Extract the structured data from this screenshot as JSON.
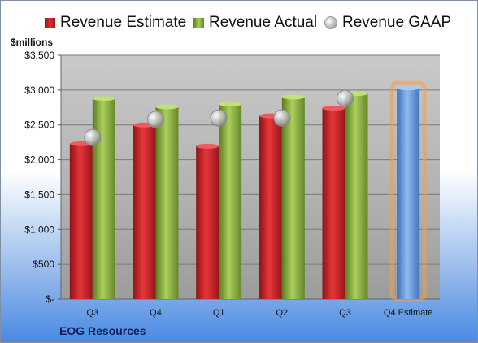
{
  "legend": {
    "estimate": "Revenue Estimate",
    "actual": "Revenue Actual",
    "gaap": "Revenue GAAP"
  },
  "unit_label": "$millions",
  "company": "EOG Resources",
  "colors": {
    "estimate": "#d32a2e",
    "actual": "#8fb24a",
    "gaap": "#b8b8b8",
    "forecast": "#6d9fdc",
    "forecast_glow": "#f5a041"
  },
  "chart_data": {
    "type": "bar",
    "categories": [
      "Q3",
      "Q4",
      "Q1",
      "Q2",
      "Q3",
      "Q4 Estimate"
    ],
    "series": [
      {
        "name": "Revenue Estimate",
        "values": [
          2230,
          2500,
          2195,
          2630,
          2740,
          3030
        ]
      },
      {
        "name": "Revenue Actual",
        "values": [
          2880,
          2760,
          2800,
          2900,
          2950,
          null
        ]
      },
      {
        "name": "Revenue GAAP",
        "values": [
          2320,
          2580,
          2600,
          2600,
          2880,
          null
        ]
      }
    ],
    "ylabel": "$millions",
    "ylim": [
      0,
      3500
    ],
    "yticks": [
      0,
      500,
      1000,
      1500,
      2000,
      2500,
      3000,
      3500
    ],
    "ytick_labels": [
      "$-",
      "$500",
      "$1,000",
      "$1,500",
      "$2,000",
      "$2,500",
      "$3,000",
      "$3,500"
    ],
    "grid": true,
    "legend_position": "top"
  }
}
